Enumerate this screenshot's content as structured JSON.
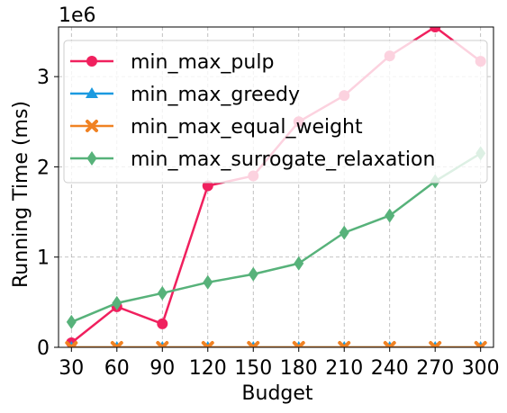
{
  "chart_data": {
    "type": "line",
    "xlabel": "Budget",
    "ylabel": "Running Time (ms)",
    "y_offset_label": "1e6",
    "x": [
      30,
      60,
      90,
      120,
      150,
      180,
      210,
      240,
      270,
      300
    ],
    "xticks": [
      "30",
      "60",
      "90",
      "120",
      "150",
      "180",
      "210",
      "240",
      "270",
      "300"
    ],
    "yticks": [
      {
        "value": 0,
        "label": "0"
      },
      {
        "value": 1000000,
        "label": "1"
      },
      {
        "value": 2000000,
        "label": "2"
      },
      {
        "value": 3000000,
        "label": "3"
      }
    ],
    "ylim": [
      0,
      3550000
    ],
    "grid": true,
    "legend_position": "upper-left",
    "series": [
      {
        "name": "min_max_pulp",
        "color": "#f0205e",
        "marker": "circle",
        "values": [
          50000,
          450000,
          260000,
          1790000,
          1900000,
          2500000,
          2790000,
          3230000,
          3550000,
          3170000
        ]
      },
      {
        "name": "min_max_greedy",
        "color": "#1b9ae0",
        "marker": "triangle",
        "values": [
          0,
          0,
          0,
          0,
          0,
          0,
          0,
          0,
          0,
          0
        ]
      },
      {
        "name": "min_max_equal_weight",
        "color": "#f08223",
        "marker": "x",
        "values": [
          0,
          0,
          0,
          0,
          0,
          0,
          0,
          0,
          0,
          0
        ]
      },
      {
        "name": "min_max_surrogate_relaxation",
        "color": "#57b27a",
        "marker": "diamond",
        "values": [
          280000,
          490000,
          600000,
          720000,
          810000,
          930000,
          1270000,
          1460000,
          1840000,
          2150000
        ]
      }
    ]
  }
}
